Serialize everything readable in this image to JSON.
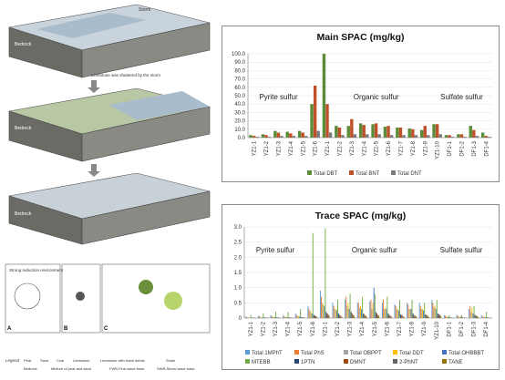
{
  "left_figure": {
    "block_labels": [
      "Bedrock",
      "Bedrock",
      "Bedrock"
    ],
    "storm_label": "Storm",
    "limestone_note": "Limestone was shattered by the storm",
    "inset_title": "Strong reduction environment",
    "panel_letters": [
      "A",
      "B",
      "C"
    ],
    "legend_title": "Legend",
    "legend_items": [
      "Peat",
      "Sand",
      "Coal",
      "Limestone",
      "Limestone with fossil debris",
      "Shale",
      "Bedrock",
      "Mixture of peat and sand",
      "FWB-Fine-wave base",
      "SWB-Storm-wave base"
    ],
    "colors": {
      "sky": "#c9d3dc",
      "sea": "#a9bccb",
      "rock": "#6b6b66",
      "peat": "#4a3a2c"
    }
  },
  "chart_data": [
    {
      "type": "bar",
      "title": "Main SPAC (mg/kg)",
      "categories": [
        "YZ1-1",
        "YZ1-2",
        "YZ1-3",
        "YZ1-4",
        "YZ1-5",
        "YZ1-6",
        "YZ1-1",
        "YZ1-2",
        "YZ1-3",
        "YZ1-4",
        "YZ1-5",
        "YZ1-6",
        "YZ1-7",
        "YZ1-8",
        "YZ1-9",
        "YZ1-10",
        "DF1-1",
        "DF1-2",
        "DF1-3",
        "DF1-4"
      ],
      "ylim": [
        0,
        100
      ],
      "yticks": [
        "0.0",
        "10.0",
        "20.0",
        "30.0",
        "40.0",
        "50.0",
        "60.0",
        "70.0",
        "80.0",
        "90.0",
        "100.0"
      ],
      "series": [
        {
          "name": "Total DBT",
          "color": "#5b8c3a",
          "values": [
            3,
            4,
            8,
            7,
            8,
            40,
            100,
            14,
            14,
            17,
            16,
            13,
            12,
            11,
            9,
            16,
            3,
            4,
            14,
            6
          ]
        },
        {
          "name": "Total BNT",
          "color": "#c0502a",
          "values": [
            2,
            3,
            6,
            5,
            6,
            62,
            40,
            12,
            22,
            15,
            17,
            14,
            12,
            10,
            14,
            16,
            3,
            4,
            9,
            2
          ]
        },
        {
          "name": "Total DNT",
          "color": "#7b7b7b",
          "values": [
            1,
            1,
            2,
            2,
            2,
            8,
            6,
            3,
            4,
            4,
            4,
            3,
            3,
            3,
            3,
            4,
            1,
            1,
            2,
            1
          ]
        }
      ],
      "annotations": [
        "Pyrite sulfur",
        "Organic sulfur",
        "Sulfate sulfur"
      ],
      "legend_position": "bottom"
    },
    {
      "type": "bar",
      "title": "Trace SPAC (mg/kg)",
      "categories": [
        "YZ1-1",
        "YZ1-2",
        "YZ1-3",
        "YZ1-4",
        "YZ1-5",
        "YZ1-6",
        "YZ1-1",
        "YZ1-2",
        "YZ1-3",
        "YZ1-4",
        "YZ1-5",
        "YZ1-6",
        "YZ1-7",
        "YZ1-8",
        "YZ1-9",
        "YZ1-10",
        "DF1-1",
        "DF1-2",
        "DF1-3",
        "DF1-4"
      ],
      "ylim": [
        0,
        3.0
      ],
      "yticks": [
        "0",
        "0.5",
        "1.0",
        "1.5",
        "2.0",
        "2.5",
        "3.0"
      ],
      "series": [
        {
          "name": "Total 1MPhT",
          "color": "#5b9bd5",
          "values": [
            0.05,
            0.08,
            0.1,
            0.1,
            0.15,
            0.4,
            0.9,
            0.5,
            0.6,
            0.5,
            0.55,
            0.5,
            0.45,
            0.5,
            0.5,
            0.6,
            0.1,
            0.1,
            0.3,
            0.1
          ]
        },
        {
          "name": "Total PhS",
          "color": "#ed7d31",
          "values": [
            0.03,
            0.05,
            0.06,
            0.06,
            0.1,
            0.3,
            0.7,
            0.4,
            0.7,
            0.5,
            0.6,
            0.6,
            0.4,
            0.45,
            0.4,
            0.5,
            0.08,
            0.08,
            0.4,
            0.05
          ]
        },
        {
          "name": "Total OBPPT",
          "color": "#a5a5a5",
          "values": [
            0.02,
            0.04,
            0.05,
            0.05,
            0.08,
            0.25,
            0.5,
            0.3,
            0.4,
            0.35,
            0.3,
            0.3,
            0.3,
            0.3,
            0.3,
            0.35,
            0.05,
            0.05,
            0.2,
            0.05
          ]
        },
        {
          "name": "Total DDT",
          "color": "#ffc000",
          "values": [
            0.02,
            0.03,
            0.04,
            0.04,
            0.06,
            0.2,
            0.45,
            0.3,
            0.5,
            0.4,
            0.5,
            0.35,
            0.3,
            0.3,
            0.3,
            0.4,
            0.05,
            0.05,
            0.35,
            0.04
          ]
        },
        {
          "name": "Total OHBBBT",
          "color": "#4472c4",
          "values": [
            0.01,
            0.02,
            0.03,
            0.03,
            0.05,
            0.15,
            0.4,
            0.25,
            0.3,
            0.3,
            1.0,
            0.3,
            0.25,
            0.3,
            0.25,
            0.3,
            0.04,
            0.04,
            0.15,
            0.03
          ]
        },
        {
          "name": "MTEBB",
          "color": "#70ad47",
          "values": [
            0.1,
            0.15,
            0.2,
            0.2,
            0.3,
            2.8,
            2.95,
            0.6,
            0.8,
            0.7,
            0.8,
            0.7,
            0.6,
            0.6,
            0.5,
            0.6,
            0.1,
            0.1,
            0.4,
            0.2
          ]
        },
        {
          "name": "1PTN",
          "color": "#264478",
          "values": [
            0.01,
            0.02,
            0.02,
            0.02,
            0.03,
            0.1,
            0.2,
            0.15,
            0.2,
            0.15,
            0.2,
            0.15,
            0.12,
            0.15,
            0.12,
            0.15,
            0.02,
            0.02,
            0.1,
            0.02
          ]
        },
        {
          "name": "DMNT",
          "color": "#9e480e",
          "values": [
            0.01,
            0.01,
            0.02,
            0.02,
            0.02,
            0.08,
            0.15,
            0.1,
            0.15,
            0.12,
            0.15,
            0.1,
            0.1,
            0.1,
            0.1,
            0.12,
            0.01,
            0.01,
            0.08,
            0.01
          ]
        },
        {
          "name": "2-PhNT",
          "color": "#636363",
          "values": [
            0.01,
            0.01,
            0.01,
            0.01,
            0.02,
            0.06,
            0.12,
            0.08,
            0.1,
            0.08,
            0.1,
            0.08,
            0.08,
            0.08,
            0.08,
            0.1,
            0.01,
            0.01,
            0.06,
            0.01
          ]
        },
        {
          "name": "TANE",
          "color": "#997300",
          "values": [
            0.01,
            0.01,
            0.01,
            0.01,
            0.01,
            0.04,
            0.08,
            0.05,
            0.08,
            0.06,
            0.08,
            0.06,
            0.05,
            0.06,
            0.05,
            0.07,
            0.01,
            0.01,
            0.04,
            0.01
          ]
        }
      ],
      "annotations": [
        "Pyrite sulfur",
        "Organic sulfur",
        "Sulfate sulfur"
      ],
      "legend_position": "bottom"
    }
  ]
}
